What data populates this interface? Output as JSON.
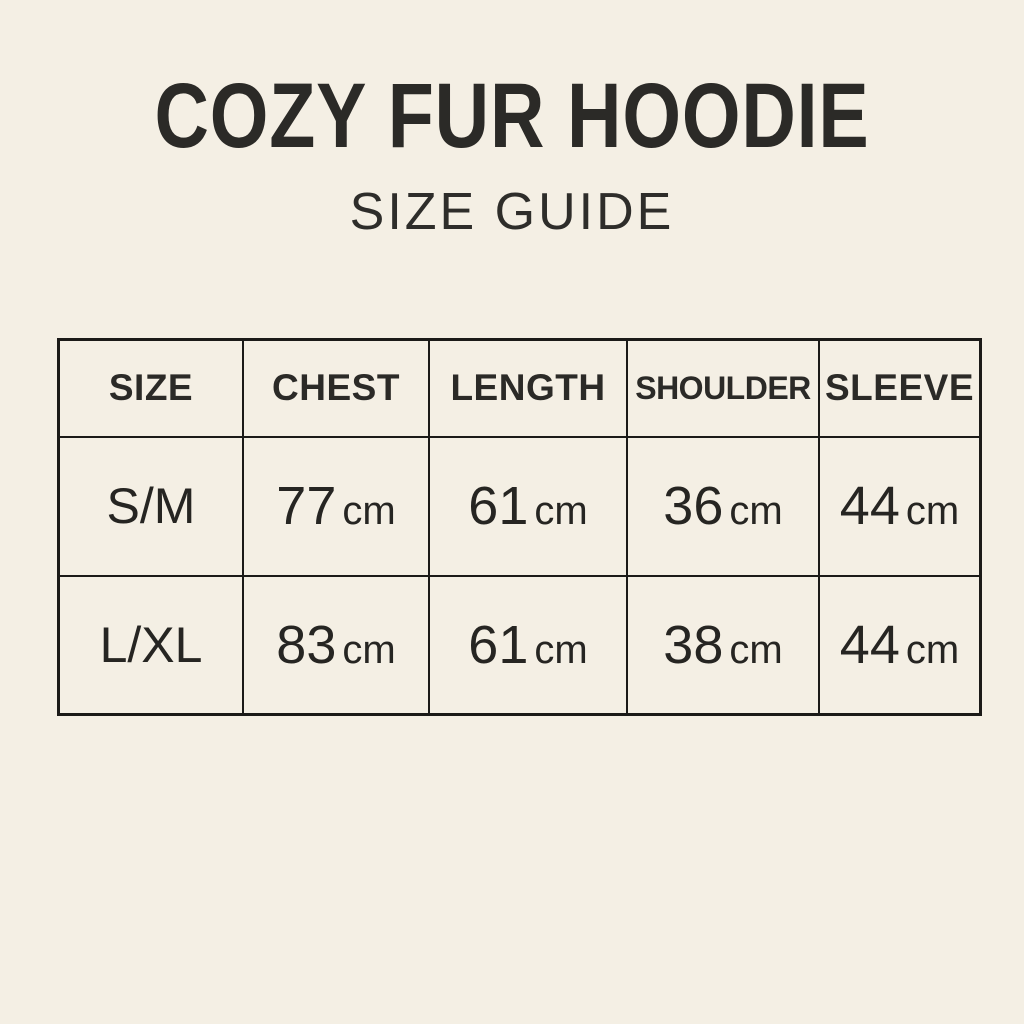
{
  "doc": {
    "title": "COZY FUR HOODIE",
    "subtitle": "SIZE GUIDE"
  },
  "table": {
    "headers": [
      "SIZE",
      "CHEST",
      "LENGTH",
      "SHOULDER",
      "SLEEVE"
    ],
    "rows": [
      {
        "size": "S/M",
        "values": [
          {
            "num": "77",
            "unit": "cm"
          },
          {
            "num": "61",
            "unit": "cm"
          },
          {
            "num": "36",
            "unit": "cm"
          },
          {
            "num": "44",
            "unit": "cm"
          }
        ]
      },
      {
        "size": "L/XL",
        "values": [
          {
            "num": "83",
            "unit": "cm"
          },
          {
            "num": "61",
            "unit": "cm"
          },
          {
            "num": "38",
            "unit": "cm"
          },
          {
            "num": "44",
            "unit": "cm"
          }
        ]
      }
    ]
  },
  "colors": {
    "background": "#f4efe4",
    "text": "#2b2a27",
    "border": "#1b1a18"
  }
}
